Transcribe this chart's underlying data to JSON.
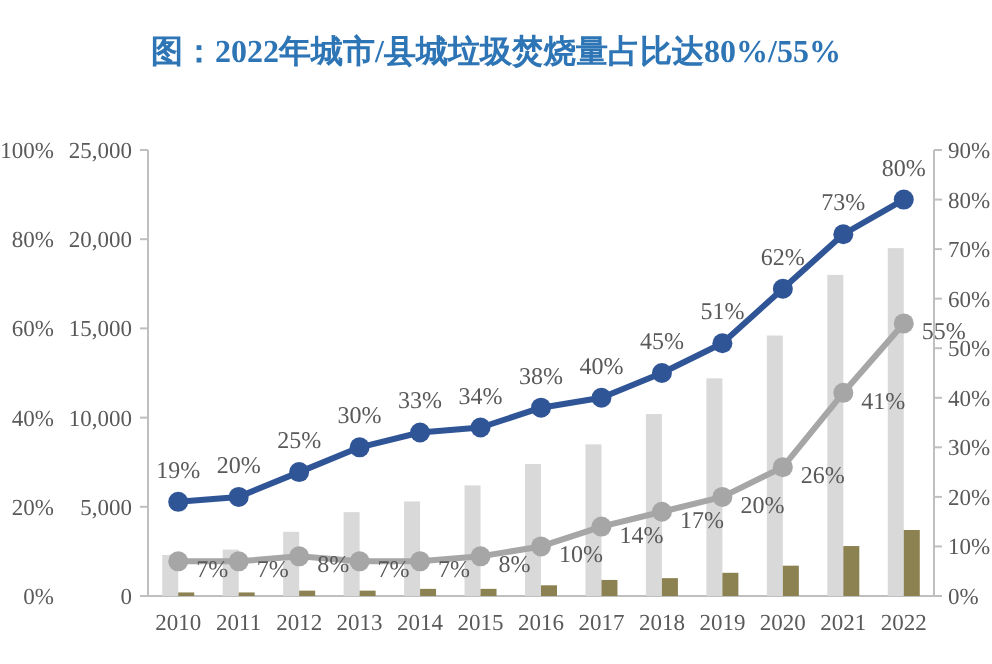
{
  "chart_data": {
    "type": "bar",
    "title": "图：2022年城市/县城垃圾焚烧量占比达80%/55%",
    "categories": [
      "2010",
      "2011",
      "2012",
      "2013",
      "2014",
      "2015",
      "2016",
      "2017",
      "2018",
      "2019",
      "2020",
      "2021",
      "2022"
    ],
    "series": [
      {
        "color": "#d9d9d9",
        "values": [
          2300,
          2600,
          3600,
          4700,
          5300,
          6200,
          7400,
          8500,
          10200,
          12200,
          14600,
          18000,
          19500
        ]
      },
      {
        "color": "#8c8150",
        "values": [
          200,
          200,
          300,
          300,
          400,
          400,
          600,
          900,
          1000,
          1300,
          1700,
          2800,
          3700
        ]
      },
      {
        "type": "line",
        "axis": "y2",
        "color": "#2f5597",
        "values": [
          19,
          20,
          25,
          30,
          33,
          34,
          38,
          40,
          45,
          51,
          62,
          73,
          80
        ],
        "value_labels": [
          "19%",
          "20%",
          "25%",
          "30%",
          "33%",
          "34%",
          "38%",
          "40%",
          "45%",
          "51%",
          "62%",
          "73%",
          "80%"
        ]
      },
      {
        "type": "line",
        "axis": "y2",
        "color": "#a6a6a6",
        "values": [
          7,
          7,
          8,
          7,
          7,
          8,
          10,
          14,
          17,
          20,
          26,
          41,
          55
        ],
        "value_labels": [
          "7%",
          "7%",
          "8%",
          "7%",
          "7%",
          "8%",
          "10%",
          "14%",
          "17%",
          "20%",
          "26%",
          "41%",
          "55%"
        ]
      }
    ],
    "ylim": [
      0,
      25000
    ],
    "yticks": [
      0,
      {
        "value": 5000,
        "label": "5,000"
      },
      {
        "value": 10000,
        "label": "10,000"
      },
      {
        "value": 15000,
        "label": "15,000"
      },
      {
        "value": 20000,
        "label": "20,000"
      },
      {
        "value": 25000,
        "label": "25,000"
      }
    ],
    "y2lim": [
      0,
      90
    ],
    "y2ticks": [
      {
        "value": 0,
        "label": "0%"
      },
      {
        "value": 10,
        "label": "10%"
      },
      {
        "value": 20,
        "label": "20%"
      },
      {
        "value": 30,
        "label": "30%"
      },
      {
        "value": 40,
        "label": "40%"
      },
      {
        "value": 50,
        "label": "50%"
      },
      {
        "value": 60,
        "label": "60%"
      },
      {
        "value": 70,
        "label": "70%"
      },
      {
        "value": 80,
        "label": "80%"
      },
      {
        "value": 90,
        "label": "90%"
      }
    ],
    "y3lim": [
      0,
      100
    ],
    "y3ticks": [
      {
        "value": 0,
        "label": "0%"
      },
      {
        "value": 20,
        "label": "20%"
      },
      {
        "value": 40,
        "label": "40%"
      },
      {
        "value": 60,
        "label": "60%"
      },
      {
        "value": 80,
        "label": "80%"
      },
      {
        "value": 100,
        "label": "100%"
      }
    ],
    "marker": "circle",
    "grid": false
  }
}
